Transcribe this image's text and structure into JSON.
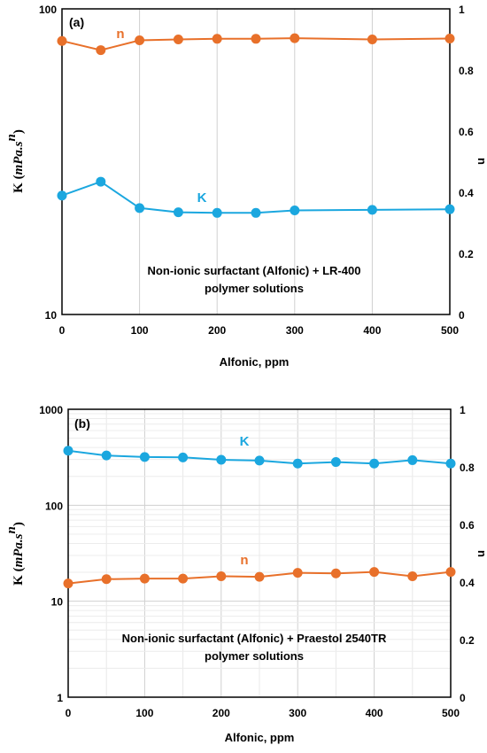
{
  "chart_data": [
    {
      "type": "line",
      "panel_label": "(a)",
      "xlabel": "Alfonic, ppm",
      "ylabel_left": "K (mPa.s^n)",
      "ylabel_left_parts": {
        "prefix": "K (",
        "math": "mPa.s",
        "sup": "n",
        "suffix": ")"
      },
      "ylabel_right": "n",
      "annotation": [
        "Non-ionic surfactant (Alfonic) + LR-400",
        "polymer solutions"
      ],
      "x_ticks": [
        0,
        100,
        200,
        300,
        400,
        500
      ],
      "xlim": [
        0,
        500
      ],
      "y_left_scale": "log",
      "y_left_lim": [
        10,
        100
      ],
      "y_left_ticks": [
        "10",
        "100"
      ],
      "y_right_lim": [
        0,
        1
      ],
      "y_right_ticks": [
        "0",
        "0.2",
        "0.4",
        "0.6",
        "0.8",
        "1"
      ],
      "grid": "vertical major",
      "series": [
        {
          "name": "n",
          "axis": "right",
          "color": "#E8702A",
          "x": [
            0,
            50,
            100,
            150,
            200,
            250,
            300,
            400,
            500
          ],
          "values": [
            0.895,
            0.865,
            0.897,
            0.9,
            0.902,
            0.902,
            0.904,
            0.9,
            0.903
          ]
        },
        {
          "name": "K",
          "axis": "left",
          "color": "#1BA7DF",
          "x": [
            0,
            50,
            100,
            150,
            200,
            250,
            300,
            400,
            500
          ],
          "values": [
            24.5,
            27.2,
            22.3,
            21.6,
            21.5,
            21.5,
            21.9,
            22.0,
            22.1
          ]
        }
      ]
    },
    {
      "type": "line",
      "panel_label": "(b)",
      "xlabel": "Alfonic, ppm",
      "ylabel_left": "K (mPa.s^n)",
      "ylabel_left_parts": {
        "prefix": "K (",
        "math": "mPa.s",
        "sup": "n",
        "suffix": ")"
      },
      "ylabel_right": "n",
      "annotation": [
        "Non-ionic surfactant (Alfonic) + Praestol 2540TR",
        "polymer solutions"
      ],
      "x_ticks": [
        0,
        100,
        200,
        300,
        400,
        500
      ],
      "xlim": [
        0,
        500
      ],
      "y_left_scale": "log",
      "y_left_lim": [
        1,
        1000
      ],
      "y_left_ticks": [
        "1",
        "10",
        "100",
        "1000"
      ],
      "y_right_lim": [
        0,
        1
      ],
      "y_right_ticks": [
        "0",
        "0.2",
        "0.4",
        "0.6",
        "0.8",
        "1"
      ],
      "grid": "major and minor",
      "series": [
        {
          "name": "K",
          "axis": "left",
          "color": "#1BA7DF",
          "x": [
            0,
            50,
            100,
            150,
            200,
            250,
            300,
            350,
            400,
            450,
            500
          ],
          "values": [
            370,
            330,
            318,
            315,
            298,
            292,
            272,
            282,
            272,
            295,
            272
          ]
        },
        {
          "name": "n",
          "axis": "right",
          "color": "#E8702A",
          "x": [
            0,
            50,
            100,
            150,
            200,
            250,
            300,
            350,
            400,
            450,
            500
          ],
          "values": [
            0.395,
            0.41,
            0.412,
            0.412,
            0.42,
            0.418,
            0.432,
            0.43,
            0.435,
            0.42,
            0.435
          ]
        }
      ]
    }
  ]
}
